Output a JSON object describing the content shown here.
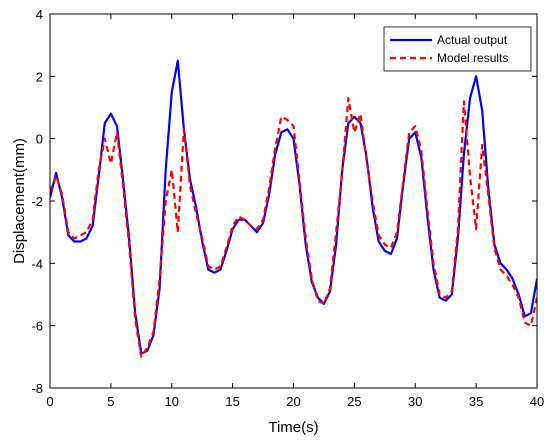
{
  "chart_data": {
    "type": "line",
    "title": "",
    "xlabel": "Time(s)",
    "ylabel": "Displacement(mm)",
    "xlim": [
      0,
      40
    ],
    "ylim": [
      -8,
      4
    ],
    "xticks": [
      0,
      5,
      10,
      15,
      20,
      25,
      30,
      35,
      40
    ],
    "yticks": [
      -8,
      -6,
      -4,
      -2,
      0,
      2,
      4
    ],
    "grid": false,
    "legend": "top-right",
    "series": [
      {
        "name": "Actual output",
        "color": "#0000ff",
        "style": "solid",
        "x": [
          0,
          0.5,
          1,
          1.5,
          2,
          2.5,
          3,
          3.5,
          4,
          4.5,
          5,
          5.5,
          6,
          6.5,
          7,
          7.5,
          8,
          8.5,
          9,
          9.5,
          10,
          10.5,
          11,
          11.5,
          12,
          12.5,
          13,
          13.5,
          14,
          14.5,
          15,
          15.5,
          16,
          16.5,
          17,
          17.5,
          18,
          18.5,
          19,
          19.5,
          20,
          20.5,
          21,
          21.5,
          22,
          22.5,
          23,
          23.5,
          24,
          24.5,
          25,
          25.5,
          26,
          26.5,
          27,
          27.5,
          28,
          28.5,
          29,
          29.5,
          30,
          30.5,
          31,
          31.5,
          32,
          32.5,
          33,
          33.5,
          34,
          34.5,
          35,
          35.5,
          36,
          36.5,
          37,
          37.5,
          38,
          38.5,
          39,
          39.5,
          40
        ],
        "y": [
          -1.9,
          -1.1,
          -1.9,
          -3.1,
          -3.3,
          -3.3,
          -3.2,
          -2.8,
          -1.2,
          0.5,
          0.8,
          0.4,
          -1.3,
          -3.2,
          -5.6,
          -6.9,
          -6.8,
          -6.3,
          -4.8,
          -1.0,
          1.5,
          2.5,
          0.3,
          -1.3,
          -2.2,
          -3.3,
          -4.2,
          -4.3,
          -4.2,
          -3.6,
          -2.9,
          -2.6,
          -2.6,
          -2.8,
          -3.0,
          -2.7,
          -1.8,
          -0.5,
          0.2,
          0.3,
          0.0,
          -1.5,
          -3.4,
          -4.6,
          -5.1,
          -5.3,
          -4.9,
          -3.4,
          -1.0,
          0.5,
          0.7,
          0.5,
          -0.6,
          -2.2,
          -3.3,
          -3.6,
          -3.7,
          -3.2,
          -1.5,
          0.0,
          0.2,
          -0.6,
          -2.5,
          -4.2,
          -5.1,
          -5.2,
          -5.0,
          -3.2,
          -0.5,
          1.3,
          2.0,
          0.9,
          -1.6,
          -3.4,
          -4.0,
          -4.2,
          -4.5,
          -5.0,
          -5.7,
          -5.6,
          -4.5
        ]
      },
      {
        "name": "Model results",
        "color": "#ff0000",
        "style": "dashed",
        "x": [
          0,
          0.5,
          1,
          1.5,
          2,
          2.5,
          3,
          3.5,
          4,
          4.5,
          5,
          5.5,
          6,
          6.5,
          7,
          7.5,
          8,
          8.5,
          9,
          9.5,
          10,
          10.5,
          11,
          11.5,
          12,
          12.5,
          13,
          13.5,
          14,
          14.5,
          15,
          15.5,
          16,
          16.5,
          17,
          17.5,
          18,
          18.5,
          19,
          19.5,
          20,
          20.5,
          21,
          21.5,
          22,
          22.5,
          23,
          23.5,
          24,
          24.5,
          25,
          25.5,
          26,
          26.5,
          27,
          27.5,
          28,
          28.5,
          29,
          29.5,
          30,
          30.5,
          31,
          31.5,
          32,
          32.5,
          33,
          33.5,
          34,
          34.5,
          35,
          35.5,
          36,
          36.5,
          37,
          37.5,
          38,
          38.5,
          39,
          39.5,
          40
        ],
        "y": [
          -1.7,
          -1.2,
          -1.8,
          -3.0,
          -3.2,
          -3.1,
          -3.0,
          -2.6,
          -1.0,
          0.0,
          -0.8,
          0.2,
          -1.5,
          -3.4,
          -5.8,
          -7.0,
          -6.7,
          -6.2,
          -4.5,
          -2.0,
          -1.0,
          -3.0,
          0.3,
          -1.5,
          -2.4,
          -3.2,
          -4.1,
          -4.2,
          -4.1,
          -3.5,
          -2.8,
          -2.5,
          -2.6,
          -2.8,
          -2.9,
          -2.6,
          -1.6,
          -0.3,
          0.7,
          0.6,
          0.4,
          -1.4,
          -3.2,
          -4.5,
          -5.2,
          -5.3,
          -4.8,
          -3.0,
          -1.1,
          1.3,
          0.2,
          0.8,
          -0.7,
          -2.0,
          -3.1,
          -3.4,
          -3.5,
          -3.0,
          -1.4,
          0.2,
          0.4,
          -0.4,
          -2.3,
          -4.0,
          -5.0,
          -5.1,
          -4.9,
          -2.9,
          1.2,
          -1.2,
          -2.9,
          -0.2,
          -1.8,
          -3.5,
          -4.2,
          -4.4,
          -4.7,
          -5.1,
          -5.9,
          -6.0,
          -5.1
        ]
      }
    ]
  }
}
